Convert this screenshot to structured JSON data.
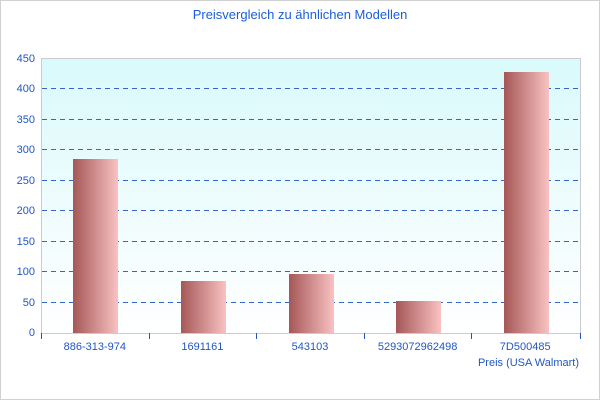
{
  "window": {
    "background": "#ffffff",
    "border_color": "#d0d0d0"
  },
  "chart_data": {
    "type": "bar",
    "title": "Preisvergleich zu ähnlichen Modellen",
    "categories": [
      "886-313-974",
      "1691161",
      "543103",
      "5293072962498",
      "7D500485"
    ],
    "values": [
      285,
      85,
      97,
      53,
      428
    ],
    "xlabel": "Preis (USA Walmart)",
    "ylabel": "",
    "ylim": [
      0,
      450
    ],
    "ytick_step": 50,
    "grid": "horizontal-dashed",
    "legend": "none",
    "colors": {
      "title_text": "#1b5edb",
      "axis_text": "#2157c4",
      "gridline": "#3465c8",
      "tick": "#2157c4",
      "bar_gradient_left": "#a65757",
      "bar_gradient_right": "#f9c2c2",
      "plot_bg_top": "#d9fafc",
      "plot_bg_bottom": "#ffffff",
      "plot_border": "#c9ccd1"
    }
  }
}
